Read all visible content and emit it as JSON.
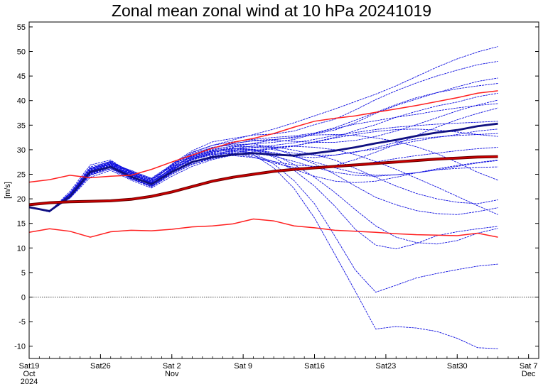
{
  "chart_data": {
    "type": "line",
    "title": "Zonal mean zonal wind at 10 hPa 20241019",
    "ylabel": "[m/s]",
    "xlabel": "",
    "ylim": [
      -12.5,
      56
    ],
    "yticks": [
      55,
      50,
      45,
      40,
      35,
      30,
      25,
      20,
      15,
      10,
      5,
      0,
      -5,
      -10
    ],
    "xlim": [
      "2024-10-19",
      "2024-12-08"
    ],
    "xticks": [
      {
        "date": "2024-10-19",
        "lines": [
          "Sat19",
          "Oct",
          "2024"
        ]
      },
      {
        "date": "2024-10-26",
        "lines": [
          "Sat26"
        ]
      },
      {
        "date": "2024-11-02",
        "lines": [
          "Sat 2",
          "Nov"
        ]
      },
      {
        "date": "2024-11-09",
        "lines": [
          "Sat 9"
        ]
      },
      {
        "date": "2024-11-16",
        "lines": [
          "Sat16"
        ]
      },
      {
        "date": "2024-11-23",
        "lines": [
          "Sat23"
        ]
      },
      {
        "date": "2024-11-30",
        "lines": [
          "Sat30"
        ]
      },
      {
        "date": "2024-12-07",
        "lines": [
          "Sat 7",
          "Dec"
        ]
      }
    ],
    "zero_line": {
      "y": 0,
      "style": "dotted"
    },
    "grid": false,
    "colors": {
      "ensemble": "#1010e0",
      "ensemble_mean": "#101080",
      "climatology": "#cc0000",
      "climatology_extremes": "#ff2020"
    },
    "x": [
      "2024-10-19",
      "2024-10-21",
      "2024-10-23",
      "2024-10-25",
      "2024-10-27",
      "2024-10-29",
      "2024-10-31",
      "2024-11-02",
      "2024-11-04",
      "2024-11-06",
      "2024-11-08",
      "2024-11-10",
      "2024-11-12",
      "2024-11-14",
      "2024-11-16",
      "2024-11-18",
      "2024-11-20",
      "2024-11-22",
      "2024-11-24",
      "2024-11-26",
      "2024-11-28",
      "2024-11-30",
      "2024-12-02",
      "2024-12-04"
    ],
    "series": [
      {
        "role": "climatology-max",
        "values": [
          23.4,
          23.9,
          24.8,
          24.3,
          24.6,
          24.8,
          26.0,
          27.5,
          28.9,
          30.3,
          31.5,
          32.3,
          33.3,
          34.6,
          35.8,
          36.4,
          36.9,
          37.6,
          38.3,
          39.0,
          39.8,
          40.6,
          41.5,
          42.0
        ]
      },
      {
        "role": "climatology-mean",
        "values": [
          18.8,
          19.2,
          19.4,
          19.5,
          19.6,
          19.9,
          20.5,
          21.4,
          22.5,
          23.6,
          24.4,
          25.0,
          25.6,
          26.0,
          26.3,
          26.6,
          26.9,
          27.2,
          27.5,
          27.8,
          28.1,
          28.3,
          28.5,
          28.6
        ]
      },
      {
        "role": "climatology-min",
        "values": [
          13.2,
          13.9,
          13.4,
          12.2,
          13.3,
          13.6,
          13.5,
          13.8,
          14.3,
          14.5,
          14.9,
          15.9,
          15.5,
          14.5,
          14.1,
          13.6,
          13.4,
          13.2,
          12.9,
          12.7,
          12.6,
          12.5,
          13.0,
          12.2
        ]
      },
      {
        "role": "ensemble-mean",
        "values": [
          18.3,
          17.5,
          20.5,
          25.5,
          26.5,
          24.5,
          23.0,
          25.5,
          27.5,
          28.5,
          29.0,
          29.3,
          29.0,
          28.8,
          29.3,
          29.8,
          30.5,
          31.3,
          32.0,
          32.8,
          33.5,
          34.0,
          34.8,
          35.3
        ]
      },
      {
        "role": "member",
        "values": [
          18.3,
          17.4,
          21.5,
          26.9,
          27.9,
          25.2,
          23.2,
          27.1,
          29.8,
          31.6,
          32.3,
          33.0,
          33.2,
          33.8,
          35.1,
          36.2,
          38.1,
          40.2,
          42.0,
          43.6,
          45.0,
          46.2,
          47.3,
          48.0
        ]
      },
      {
        "role": "member",
        "values": [
          18.3,
          17.5,
          20.8,
          25.6,
          27.2,
          25.8,
          24.1,
          26.5,
          28.7,
          29.9,
          30.8,
          31.2,
          31.5,
          32.1,
          33.2,
          34.0,
          35.5,
          37.4,
          39.0,
          40.3,
          41.6,
          42.8,
          43.9,
          44.6
        ]
      },
      {
        "role": "member",
        "values": [
          18.3,
          17.6,
          20.2,
          24.8,
          26.1,
          24.0,
          22.7,
          25.0,
          27.1,
          28.3,
          29.3,
          29.9,
          30.2,
          30.8,
          31.6,
          32.5,
          33.9,
          35.1,
          36.6,
          37.8,
          38.9,
          39.7,
          40.8,
          41.5
        ]
      },
      {
        "role": "member",
        "values": [
          18.3,
          17.3,
          21.0,
          26.3,
          27.0,
          24.6,
          22.9,
          26.0,
          28.2,
          29.5,
          30.0,
          30.1,
          29.4,
          28.6,
          28.4,
          28.9,
          29.6,
          30.1,
          31.0,
          31.8,
          32.5,
          33.1,
          33.8,
          34.2
        ]
      },
      {
        "role": "member",
        "values": [
          18.3,
          17.5,
          20.4,
          25.2,
          26.7,
          25.1,
          23.5,
          25.6,
          27.4,
          28.4,
          28.8,
          28.4,
          27.6,
          26.9,
          26.6,
          26.7,
          27.0,
          27.5,
          28.2,
          28.8,
          29.3,
          29.8,
          30.2,
          30.5
        ]
      },
      {
        "role": "member",
        "values": [
          18.3,
          17.4,
          20.9,
          25.9,
          27.4,
          25.4,
          23.0,
          26.3,
          28.9,
          30.3,
          31.2,
          31.9,
          32.1,
          32.4,
          33.3,
          34.3,
          35.2,
          35.9,
          36.6,
          37.2,
          37.9,
          38.5,
          39.0,
          39.4
        ]
      },
      {
        "role": "member",
        "values": [
          18.3,
          17.6,
          20.1,
          24.4,
          25.8,
          23.8,
          22.2,
          24.6,
          26.6,
          28.0,
          28.9,
          29.3,
          28.7,
          27.6,
          26.4,
          25.4,
          24.8,
          24.6,
          24.9,
          25.3,
          25.9,
          26.6,
          27.3,
          27.8
        ]
      },
      {
        "role": "member",
        "values": [
          18.3,
          17.5,
          20.6,
          25.4,
          26.8,
          24.9,
          23.3,
          26.2,
          28.0,
          29.4,
          30.2,
          30.8,
          30.6,
          29.9,
          29.0,
          27.9,
          26.2,
          24.4,
          22.6,
          21.1,
          20.0,
          19.3,
          19.0,
          19.8
        ]
      },
      {
        "role": "member",
        "values": [
          18.3,
          17.4,
          21.2,
          26.5,
          27.6,
          25.3,
          23.8,
          26.8,
          29.2,
          30.5,
          31.0,
          31.2,
          30.3,
          28.8,
          27.1,
          25.0,
          22.6,
          20.3,
          18.8,
          17.6,
          17.0,
          16.8,
          17.4,
          18.2
        ]
      },
      {
        "role": "member",
        "values": [
          18.3,
          17.5,
          20.3,
          25.0,
          26.4,
          24.3,
          22.6,
          25.3,
          27.6,
          28.6,
          29.6,
          30.1,
          29.0,
          27.0,
          24.4,
          21.3,
          17.8,
          14.5,
          12.2,
          11.1,
          10.8,
          11.5,
          13.0,
          14.0
        ]
      },
      {
        "role": "member",
        "values": [
          18.3,
          17.6,
          20.7,
          25.6,
          27.1,
          25.5,
          23.9,
          26.6,
          28.5,
          29.8,
          30.3,
          30.0,
          28.5,
          25.8,
          22.6,
          18.5,
          13.8,
          10.6,
          9.8,
          10.9,
          12.5,
          13.3,
          13.9,
          14.4
        ]
      },
      {
        "role": "member",
        "values": [
          18.3,
          17.4,
          20.5,
          25.2,
          26.9,
          24.8,
          23.4,
          26.1,
          28.4,
          29.2,
          29.8,
          29.4,
          27.1,
          23.7,
          19.0,
          12.4,
          5.5,
          1.0,
          2.4,
          3.9,
          4.8,
          5.6,
          6.3,
          6.7
        ]
      },
      {
        "role": "member",
        "values": [
          18.3,
          17.5,
          20.9,
          25.7,
          27.3,
          25.1,
          23.1,
          25.8,
          28.1,
          29.6,
          30.0,
          29.0,
          26.3,
          22.1,
          16.1,
          8.7,
          1.2,
          -6.5,
          -6.0,
          -6.3,
          -7.0,
          -8.4,
          -10.3,
          -10.5
        ]
      },
      {
        "role": "member",
        "values": [
          18.3,
          17.6,
          20.4,
          25.1,
          26.6,
          24.5,
          22.8,
          25.5,
          27.9,
          29.0,
          29.4,
          28.8,
          27.6,
          26.0,
          24.6,
          23.6,
          23.3,
          23.6,
          24.4,
          25.3,
          26.1,
          26.8,
          27.4,
          27.9
        ]
      },
      {
        "role": "member",
        "values": [
          18.3,
          17.5,
          21.1,
          26.1,
          27.5,
          25.6,
          24.0,
          26.9,
          29.4,
          30.9,
          32.0,
          33.1,
          34.2,
          35.5,
          36.9,
          38.3,
          39.8,
          41.3,
          43.0,
          44.9,
          46.8,
          48.5,
          49.9,
          51.0
        ]
      },
      {
        "role": "member",
        "values": [
          18.3,
          17.4,
          20.2,
          24.9,
          26.2,
          24.2,
          22.5,
          25.2,
          27.3,
          28.8,
          29.9,
          30.5,
          30.9,
          31.4,
          32.1,
          32.9,
          33.5,
          34.1,
          34.6,
          34.9,
          35.2,
          35.4,
          35.6,
          35.8
        ]
      },
      {
        "role": "member",
        "values": [
          18.3,
          17.6,
          20.6,
          25.5,
          27.0,
          25.0,
          23.3,
          26.4,
          28.8,
          30.1,
          30.7,
          30.6,
          30.0,
          29.3,
          28.9,
          28.9,
          29.5,
          30.4,
          31.5,
          32.2,
          32.6,
          32.9,
          33.1,
          33.3
        ]
      },
      {
        "role": "member",
        "values": [
          18.3,
          17.5,
          20.8,
          25.8,
          27.2,
          25.2,
          23.6,
          26.0,
          28.0,
          29.1,
          29.2,
          28.5,
          27.3,
          26.4,
          26.2,
          26.8,
          28.0,
          29.5,
          31.1,
          32.9,
          34.6,
          36.1,
          37.4,
          38.5
        ]
      },
      {
        "role": "member",
        "values": [
          18.3,
          17.4,
          20.3,
          25.3,
          26.5,
          24.4,
          22.9,
          25.7,
          28.3,
          29.7,
          30.5,
          31.3,
          32.0,
          32.6,
          33.0,
          33.1,
          32.9,
          32.4,
          31.7,
          30.6,
          29.2,
          27.4,
          25.4,
          23.8
        ]
      },
      {
        "role": "member",
        "values": [
          18.3,
          17.6,
          21.0,
          26.0,
          27.5,
          25.7,
          24.2,
          27.0,
          29.5,
          30.9,
          31.6,
          32.1,
          32.5,
          32.8,
          33.4,
          34.5,
          36.0,
          37.6,
          39.2,
          40.6,
          41.6,
          42.4,
          43.0,
          43.5
        ]
      },
      {
        "role": "member",
        "values": [
          18.3,
          17.5,
          20.5,
          25.3,
          26.8,
          24.7,
          23.1,
          25.9,
          28.0,
          29.2,
          29.7,
          29.8,
          29.4,
          28.6,
          27.5,
          26.3,
          25.3,
          24.8,
          24.9,
          25.3,
          25.9,
          26.2,
          26.4,
          26.5
        ]
      },
      {
        "role": "member",
        "values": [
          18.3,
          17.4,
          20.7,
          25.7,
          27.1,
          25.1,
          23.4,
          26.2,
          28.6,
          29.8,
          30.2,
          30.4,
          30.5,
          30.8,
          31.5,
          32.4,
          33.1,
          33.7,
          34.1,
          34.2,
          34.0,
          33.6,
          33.1,
          32.7
        ]
      },
      {
        "role": "member",
        "values": [
          18.3,
          17.6,
          20.4,
          25.2,
          26.4,
          24.1,
          22.4,
          25.0,
          27.0,
          28.2,
          29.0,
          29.6,
          30.3,
          30.7,
          30.5,
          30.0,
          29.0,
          27.6,
          26.0,
          24.2,
          22.4,
          20.5,
          18.6,
          16.8
        ]
      },
      {
        "role": "member",
        "values": [
          18.3,
          17.5,
          21.1,
          26.2,
          27.7,
          25.5,
          23.7,
          26.7,
          29.0,
          30.4,
          31.3,
          31.8,
          31.9,
          31.7,
          31.5,
          31.5,
          31.9,
          32.7,
          33.8,
          35.1,
          36.5,
          37.9,
          39.1,
          40.1
        ]
      }
    ]
  }
}
